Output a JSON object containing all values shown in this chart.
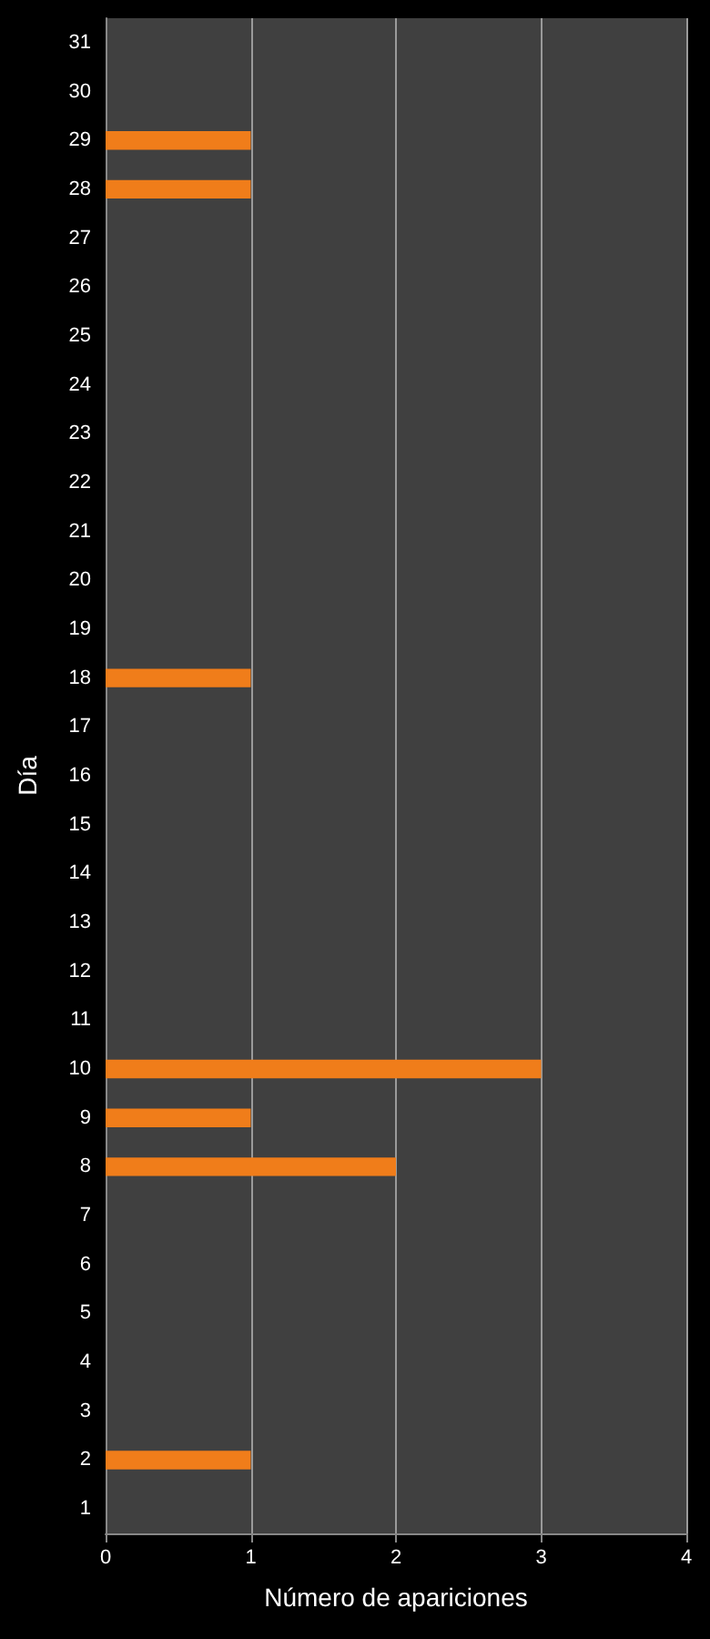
{
  "chart_data": {
    "type": "bar",
    "orientation": "horizontal",
    "xlabel": "Número de apariciones",
    "ylabel": "Día",
    "categories": [
      "31",
      "30",
      "29",
      "28",
      "27",
      "26",
      "25",
      "24",
      "23",
      "22",
      "21",
      "20",
      "19",
      "18",
      "17",
      "16",
      "15",
      "14",
      "13",
      "12",
      "11",
      "10",
      "9",
      "8",
      "7",
      "6",
      "5",
      "4",
      "3",
      "2",
      "1"
    ],
    "values": [
      0,
      0,
      1,
      1,
      0,
      0,
      0,
      0,
      0,
      0,
      0,
      0,
      0,
      1,
      0,
      0,
      0,
      0,
      0,
      0,
      0,
      3,
      1,
      2,
      0,
      0,
      0,
      0,
      0,
      1,
      0
    ],
    "color": "#f07d1a",
    "xlim": [
      0,
      4
    ],
    "xticks": [
      0,
      1,
      2,
      3,
      4
    ],
    "grid": "x"
  }
}
